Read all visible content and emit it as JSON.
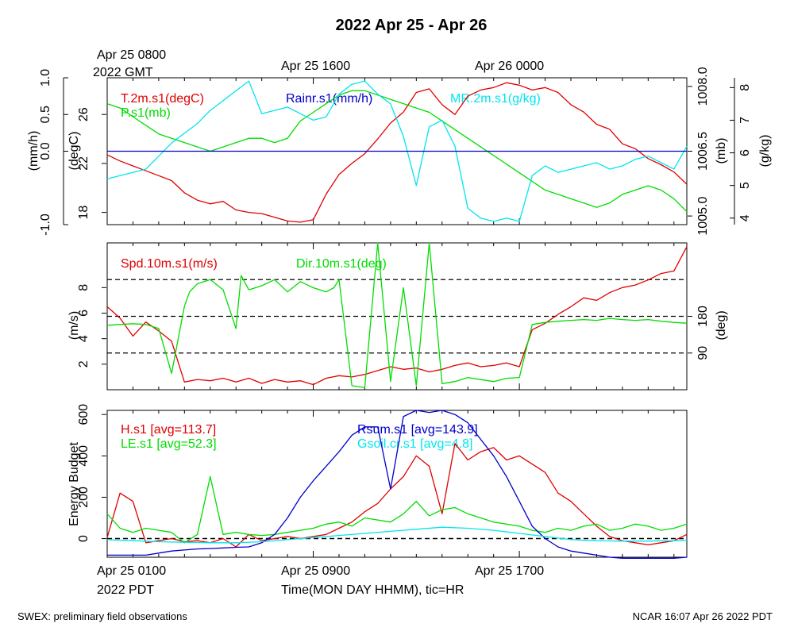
{
  "title": "2022 Apr 25 - Apr 26",
  "top_time_labels": {
    "start_line1": "Apr 25 0800",
    "start_line2": "2022 GMT",
    "mid": "Apr 25 1600",
    "end": "Apr 26 0000"
  },
  "bottom_time_labels": {
    "start_line1": "Apr 25 0100",
    "start_line2": "2022 PDT",
    "mid": "Apr 25 0900",
    "end": "Apr 25 1700",
    "axis_title": "Time(MON DAY HHMM), tic=HR"
  },
  "footer": {
    "left": "SWEX: preliminary field observations",
    "right": "NCAR 16:07 Apr 26 2022 PDT"
  },
  "colors": {
    "red": "#e00000",
    "green": "#00dd00",
    "cyan": "#00e5ee",
    "blue": "#0000cc",
    "black": "#000000"
  },
  "chart_data": [
    {
      "type": "line",
      "panel": "meteorology",
      "x_unit": "hours since Apr 25 0100 PDT",
      "x_range": [
        0,
        22.5
      ],
      "axes": [
        {
          "id": "rain",
          "label": "(mm/h)",
          "side": "left-outer",
          "range": [
            -1.0,
            1.0
          ],
          "ticks": [
            "-1.0",
            "0.0",
            "0.5",
            "1.0"
          ],
          "tick_values": [
            -1.0,
            0.0,
            0.5,
            1.0
          ]
        },
        {
          "id": "temp",
          "label": "(degC)",
          "side": "left-inner",
          "range": [
            17,
            29
          ],
          "ticks": [
            "18",
            "22",
            "26"
          ],
          "tick_values": [
            18,
            22,
            26
          ]
        },
        {
          "id": "pres",
          "label": "(mb)",
          "side": "right-inner",
          "range": [
            1004.8,
            1008.2
          ],
          "ticks": [
            "1005.0",
            "1006.5",
            "1008.0"
          ],
          "tick_values": [
            1005.0,
            1006.5,
            1008.0
          ]
        },
        {
          "id": "mr",
          "label": "(g/kg)",
          "side": "right-outer",
          "range": [
            3.8,
            8.3
          ],
          "ticks": [
            "4",
            "5",
            "6",
            "7",
            "8"
          ],
          "tick_values": [
            4,
            5,
            6,
            7,
            8
          ]
        }
      ],
      "series": [
        {
          "name": "T.2m.s1(degC)",
          "color": "#e00000",
          "axis": "temp",
          "x": [
            0,
            0.5,
            1,
            1.5,
            2,
            2.5,
            3,
            3.5,
            4,
            4.5,
            5,
            5.5,
            6,
            6.5,
            7,
            7.5,
            8,
            8.5,
            9,
            9.5,
            10,
            10.5,
            11,
            11.5,
            12,
            12.5,
            13,
            13.5,
            14,
            14.5,
            15,
            15.5,
            16,
            16.5,
            17,
            17.5,
            18,
            18.5,
            19,
            19.5,
            20,
            20.5,
            21,
            21.5,
            22,
            22.5
          ],
          "y": [
            22.7,
            22.2,
            21.8,
            21.4,
            21.0,
            20.6,
            19.6,
            19.0,
            18.7,
            18.9,
            18.2,
            18.0,
            17.9,
            17.6,
            17.3,
            17.2,
            17.4,
            19.5,
            21.1,
            22.0,
            22.8,
            24.0,
            25.3,
            26.2,
            27.8,
            28.1,
            26.8,
            26.0,
            27.5,
            28.0,
            28.2,
            28.6,
            28.4,
            28.0,
            28.2,
            27.8,
            26.8,
            26.2,
            25.2,
            24.8,
            23.6,
            23.2,
            22.4,
            21.9,
            21.3,
            20.3
          ]
        },
        {
          "name": "P.s1(mb)",
          "color": "#00dd00",
          "axis": "pres",
          "x": [
            0,
            0.5,
            1,
            1.5,
            2,
            2.5,
            3,
            3.5,
            4,
            4.5,
            5,
            5.5,
            6,
            6.5,
            7,
            7.5,
            8,
            8.5,
            9,
            9.5,
            10,
            10.5,
            11,
            11.5,
            12,
            12.5,
            13,
            13.5,
            14,
            14.5,
            15,
            15.5,
            16,
            16.5,
            17,
            17.5,
            18,
            18.5,
            19,
            19.5,
            20,
            20.5,
            21,
            21.5,
            22,
            22.5
          ],
          "y": [
            1007.6,
            1007.5,
            1007.3,
            1007.1,
            1006.9,
            1006.8,
            1006.7,
            1006.6,
            1006.5,
            1006.6,
            1006.7,
            1006.8,
            1006.8,
            1006.7,
            1006.8,
            1007.2,
            1007.4,
            1007.6,
            1007.8,
            1007.9,
            1007.9,
            1007.8,
            1007.7,
            1007.6,
            1007.5,
            1007.4,
            1007.2,
            1007.0,
            1006.8,
            1006.6,
            1006.4,
            1006.2,
            1006.0,
            1005.8,
            1005.6,
            1005.5,
            1005.4,
            1005.3,
            1005.2,
            1005.3,
            1005.5,
            1005.6,
            1005.7,
            1005.6,
            1005.4,
            1005.1
          ]
        },
        {
          "name": "MR.2m.s1(g/kg)",
          "color": "#00e5ee",
          "axis": "mr",
          "x": [
            0,
            0.5,
            1,
            1.5,
            2,
            2.5,
            3,
            3.5,
            4,
            4.5,
            5,
            5.5,
            6,
            6.5,
            7,
            7.5,
            8,
            8.5,
            9,
            9.5,
            10,
            10.5,
            11,
            11.5,
            12,
            12.5,
            13,
            13.5,
            14,
            14.5,
            15,
            15.5,
            16,
            16.5,
            17,
            17.5,
            18,
            18.5,
            19,
            19.5,
            20,
            20.5,
            21,
            21.5,
            22,
            22.5
          ],
          "y": [
            5.2,
            5.3,
            5.4,
            5.5,
            5.9,
            6.3,
            6.6,
            6.9,
            7.3,
            7.6,
            7.9,
            8.2,
            7.2,
            7.3,
            7.4,
            7.2,
            7.0,
            7.1,
            7.8,
            8.1,
            8.2,
            7.8,
            7.5,
            6.5,
            5.0,
            6.8,
            7.0,
            6.2,
            4.3,
            4.0,
            3.9,
            4.0,
            3.9,
            5.3,
            5.6,
            5.4,
            5.5,
            5.6,
            5.7,
            5.5,
            5.6,
            5.8,
            5.9,
            5.7,
            5.5,
            6.2
          ]
        },
        {
          "name": "Rainr.s1(mm/h)",
          "color": "#0000cc",
          "axis": "rain",
          "x": [
            0,
            22.5
          ],
          "y": [
            0.0,
            0.0
          ]
        }
      ]
    },
    {
      "type": "line",
      "panel": "wind",
      "x_unit": "hours since Apr 25 0100 PDT",
      "x_range": [
        0,
        22.5
      ],
      "axes": [
        {
          "id": "spd",
          "label": "(m/s)",
          "side": "left",
          "range": [
            0,
            11.5
          ],
          "ticks": [
            "2",
            "4",
            "6",
            "8"
          ],
          "tick_values": [
            2,
            4,
            6,
            8
          ]
        },
        {
          "id": "dir",
          "label": "(deg)",
          "side": "right",
          "range": [
            0,
            360
          ],
          "ticks": [
            "90",
            "180"
          ],
          "tick_values": [
            90,
            180
          ]
        }
      ],
      "reference_lines_deg": [
        90,
        180,
        270
      ],
      "series": [
        {
          "name": "Spd.10m.s1(m/s)",
          "color": "#e00000",
          "axis": "spd",
          "x": [
            0,
            0.5,
            1,
            1.5,
            2,
            2.5,
            3,
            3.5,
            4,
            4.5,
            5,
            5.5,
            6,
            6.5,
            7,
            7.5,
            8,
            8.5,
            9,
            9.5,
            10,
            10.5,
            11,
            11.5,
            12,
            12.5,
            13,
            13.5,
            14,
            14.5,
            15,
            15.5,
            16,
            16.5,
            17,
            17.5,
            18,
            18.5,
            19,
            19.5,
            20,
            20.5,
            21,
            21.5,
            22,
            22.5
          ],
          "y": [
            6.5,
            5.6,
            4.2,
            5.3,
            4.6,
            3.8,
            0.6,
            0.8,
            0.7,
            0.9,
            0.6,
            0.9,
            0.5,
            0.8,
            0.6,
            0.7,
            0.4,
            0.9,
            1.1,
            1.0,
            1.2,
            1.5,
            1.8,
            1.6,
            1.7,
            1.4,
            1.6,
            1.9,
            2.1,
            1.8,
            1.9,
            2.1,
            1.8,
            4.7,
            5.2,
            5.9,
            6.5,
            7.2,
            7.0,
            7.6,
            8.0,
            8.2,
            8.6,
            9.1,
            9.3,
            11.2
          ]
        },
        {
          "name": "Dir.10m.s1(deg)",
          "color": "#00dd00",
          "axis": "dir",
          "x": [
            0,
            0.5,
            1,
            1.5,
            2,
            2.5,
            3,
            3.2,
            3.5,
            4,
            4.5,
            5,
            5.2,
            5.5,
            6,
            6.5,
            7,
            7.5,
            8,
            8.5,
            8.8,
            9,
            9.5,
            10,
            10.5,
            11,
            11.5,
            12,
            12.5,
            13,
            13.5,
            14,
            14.5,
            15,
            15.5,
            16,
            16.5,
            17,
            17.5,
            18,
            18.5,
            19,
            19.5,
            20,
            20.5,
            21,
            21.5,
            22,
            22.5
          ],
          "y": [
            158,
            160,
            162,
            160,
            150,
            40,
            205,
            240,
            260,
            270,
            245,
            150,
            280,
            245,
            255,
            270,
            240,
            265,
            250,
            240,
            250,
            270,
            10,
            5,
            360,
            20,
            250,
            10,
            360,
            15,
            20,
            30,
            25,
            20,
            28,
            30,
            160,
            165,
            168,
            170,
            172,
            170,
            175,
            172,
            170,
            172,
            168,
            165,
            163
          ]
        }
      ]
    },
    {
      "type": "line",
      "panel": "energy",
      "x_unit": "hours since Apr 25 0100 PDT",
      "x_range": [
        0,
        22.5
      ],
      "axes": [
        {
          "id": "energy",
          "label": "Energy Budget",
          "side": "left",
          "range": [
            -90,
            620
          ],
          "ticks": [
            "0",
            "200",
            "400",
            "600"
          ],
          "tick_values": [
            0,
            200,
            400,
            600
          ]
        }
      ],
      "zero_line": 0,
      "series": [
        {
          "name": "H.s1",
          "avg_label": "H.s1 [avg=113.7]",
          "color": "#e00000",
          "axis": "energy",
          "x": [
            0,
            0.5,
            1,
            1.5,
            2,
            2.5,
            3,
            3.5,
            4,
            4.5,
            5,
            5.5,
            6,
            6.5,
            7,
            7.5,
            8,
            8.5,
            9,
            9.5,
            10,
            10.5,
            11,
            11.5,
            12,
            12.5,
            13,
            13.5,
            14,
            14.5,
            15,
            15.5,
            16,
            16.5,
            17,
            17.5,
            18,
            18.5,
            19,
            19.5,
            20,
            20.5,
            21,
            21.5,
            22,
            22.5
          ],
          "y": [
            5,
            220,
            180,
            -20,
            -10,
            0,
            -15,
            -10,
            -20,
            0,
            -40,
            20,
            -10,
            0,
            10,
            0,
            10,
            20,
            50,
            80,
            130,
            170,
            240,
            300,
            400,
            350,
            120,
            460,
            380,
            420,
            440,
            380,
            400,
            360,
            320,
            220,
            180,
            120,
            60,
            10,
            -10,
            -20,
            -30,
            -20,
            -10,
            20
          ]
        },
        {
          "name": "LE.s1",
          "avg_label": "LE.s1 [avg=52.3]",
          "color": "#00dd00",
          "axis": "energy",
          "x": [
            0,
            0.5,
            1,
            1.5,
            2,
            2.5,
            3,
            3.5,
            4,
            4.5,
            5,
            5.5,
            6,
            6.5,
            7,
            7.5,
            8,
            8.5,
            9,
            9.5,
            10,
            10.5,
            11,
            11.5,
            12,
            12.5,
            13,
            13.5,
            14,
            14.5,
            15,
            15.5,
            16,
            16.5,
            17,
            17.5,
            18,
            18.5,
            19,
            19.5,
            20,
            20.5,
            21,
            21.5,
            22,
            22.5
          ],
          "y": [
            120,
            50,
            30,
            50,
            40,
            30,
            -20,
            20,
            300,
            20,
            30,
            20,
            15,
            20,
            30,
            40,
            50,
            70,
            80,
            60,
            100,
            90,
            80,
            120,
            180,
            110,
            140,
            150,
            120,
            100,
            80,
            70,
            60,
            40,
            30,
            50,
            40,
            60,
            70,
            40,
            50,
            70,
            60,
            40,
            50,
            70
          ]
        },
        {
          "name": "Rsum.s1",
          "avg_label": "Rsum.s1 [avg=143.9]",
          "color": "#0000cc",
          "axis": "energy",
          "x": [
            0,
            0.5,
            1,
            1.5,
            2,
            2.5,
            3,
            3.5,
            4,
            4.5,
            5,
            5.5,
            6,
            6.5,
            7,
            7.5,
            8,
            8.5,
            9,
            9.5,
            10,
            10.5,
            11,
            11.5,
            12,
            12.5,
            13,
            13.5,
            14,
            14.5,
            15,
            15.5,
            16,
            16.5,
            17,
            17.5,
            18,
            18.5,
            19,
            19.5,
            20,
            20.5,
            21,
            21.5,
            22,
            22.5
          ],
          "y": [
            -80,
            -80,
            -80,
            -80,
            -70,
            -60,
            -55,
            -50,
            -48,
            -45,
            -42,
            -40,
            -20,
            20,
            100,
            200,
            280,
            350,
            420,
            500,
            540,
            540,
            240,
            590,
            620,
            610,
            620,
            600,
            560,
            480,
            400,
            300,
            180,
            60,
            0,
            -40,
            -60,
            -70,
            -80,
            -90,
            -95,
            -95,
            -95,
            -95,
            -95,
            -90
          ]
        },
        {
          "name": "Gsoil.cr.s1",
          "avg_label": "Gsoil.cr.s1 [avg=4.8]",
          "color": "#00e5ee",
          "axis": "energy",
          "x": [
            0,
            1,
            2,
            3,
            4,
            5,
            6,
            7,
            8,
            9,
            10,
            11,
            12,
            13,
            14,
            15,
            16,
            17,
            18,
            19,
            20,
            21,
            22,
            22.5
          ],
          "y": [
            -5,
            -10,
            -15,
            -18,
            -20,
            -20,
            -15,
            -5,
            5,
            15,
            25,
            35,
            45,
            55,
            50,
            40,
            25,
            10,
            -5,
            -10,
            -12,
            -12,
            -10,
            -8
          ]
        }
      ]
    }
  ]
}
